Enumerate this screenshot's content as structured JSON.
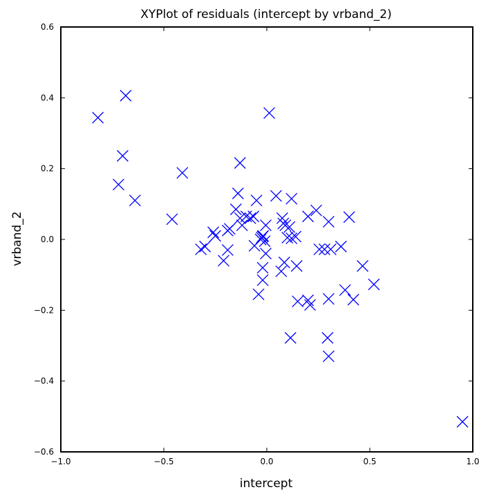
{
  "chart_data": {
    "type": "scatter",
    "title": "XYPlot of residuals (intercept by vrband_2)",
    "xlabel": "intercept",
    "ylabel": "vrband_2",
    "xlim": [
      -1.0,
      1.0
    ],
    "ylim": [
      -0.6,
      0.6
    ],
    "xticks": [
      "−1.0",
      "−0.5",
      "0.0",
      "0.5",
      "1.0"
    ],
    "yticks": [
      "−0.6",
      "−0.4",
      "−0.2",
      "0.0",
      "0.2",
      "0.4",
      "0.6"
    ],
    "marker": "x",
    "color": "#0000ff",
    "grid": false,
    "points": [
      [
        -0.82,
        0.344
      ],
      [
        -0.685,
        0.406
      ],
      [
        -0.7,
        0.236
      ],
      [
        -0.72,
        0.155
      ],
      [
        -0.64,
        0.11
      ],
      [
        -0.41,
        0.188
      ],
      [
        -0.46,
        0.057
      ],
      [
        0.012,
        0.357
      ],
      [
        -0.13,
        0.216
      ],
      [
        -0.14,
        0.13
      ],
      [
        -0.15,
        0.085
      ],
      [
        -0.13,
        0.06
      ],
      [
        -0.12,
        0.04
      ],
      [
        -0.1,
        0.065
      ],
      [
        -0.08,
        0.06
      ],
      [
        -0.05,
        0.11
      ],
      [
        -0.065,
        0.065
      ],
      [
        -0.06,
        -0.018
      ],
      [
        -0.03,
        0.0
      ],
      [
        -0.025,
        0.005
      ],
      [
        -0.02,
        0.008
      ],
      [
        -0.01,
        -0.005
      ],
      [
        -0.018,
        0.01
      ],
      [
        -0.005,
        0.04
      ],
      [
        -0.005,
        -0.04
      ],
      [
        -0.02,
        -0.08
      ],
      [
        -0.02,
        -0.115
      ],
      [
        -0.04,
        -0.155
      ],
      [
        -0.19,
        0.025
      ],
      [
        -0.18,
        0.03
      ],
      [
        -0.19,
        -0.03
      ],
      [
        -0.21,
        -0.06
      ],
      [
        -0.25,
        0.01
      ],
      [
        -0.26,
        0.02
      ],
      [
        -0.3,
        -0.02
      ],
      [
        -0.32,
        -0.028
      ],
      [
        0.045,
        0.123
      ],
      [
        0.075,
        0.06
      ],
      [
        0.08,
        0.045
      ],
      [
        0.09,
        0.04
      ],
      [
        0.11,
        0.035
      ],
      [
        0.12,
        0.115
      ],
      [
        0.1,
        0.005
      ],
      [
        0.12,
        0.003
      ],
      [
        0.14,
        0.008
      ],
      [
        0.085,
        -0.065
      ],
      [
        0.07,
        -0.09
      ],
      [
        0.145,
        -0.075
      ],
      [
        0.2,
        0.065
      ],
      [
        0.24,
        0.082
      ],
      [
        0.3,
        0.05
      ],
      [
        0.4,
        0.063
      ],
      [
        0.255,
        -0.028
      ],
      [
        0.28,
        -0.028
      ],
      [
        0.31,
        -0.028
      ],
      [
        0.36,
        -0.02
      ],
      [
        0.465,
        -0.075
      ],
      [
        0.15,
        -0.175
      ],
      [
        0.2,
        -0.172
      ],
      [
        0.21,
        -0.185
      ],
      [
        0.3,
        -0.168
      ],
      [
        0.38,
        -0.143
      ],
      [
        0.42,
        -0.17
      ],
      [
        0.52,
        -0.127
      ],
      [
        0.115,
        -0.278
      ],
      [
        0.295,
        -0.278
      ],
      [
        0.3,
        -0.33
      ],
      [
        0.95,
        -0.515
      ]
    ]
  }
}
